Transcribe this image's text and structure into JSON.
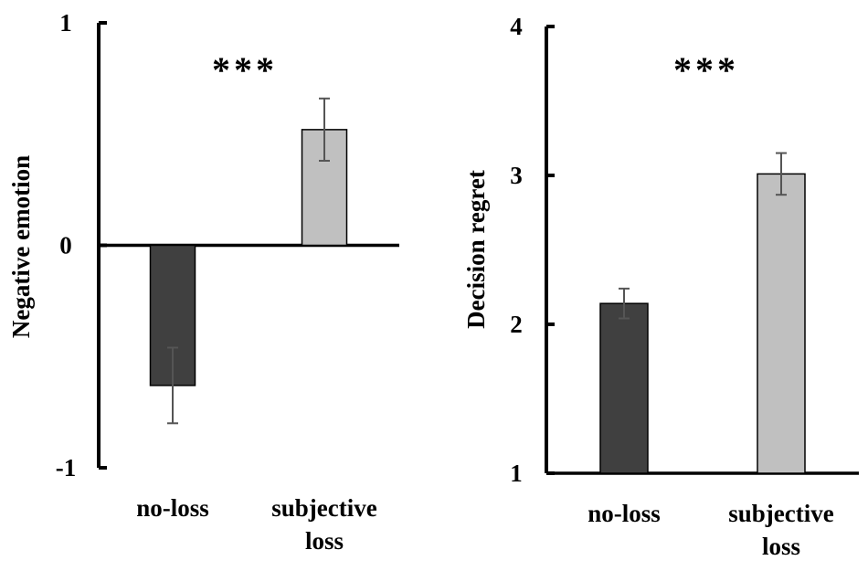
{
  "chart_data": [
    {
      "type": "bar",
      "categories": [
        [
          "no-loss"
        ],
        [
          "subjective",
          "loss"
        ]
      ],
      "values": [
        -0.63,
        0.52
      ],
      "errors": [
        0.17,
        0.14
      ],
      "colors": [
        "#404040",
        "#c0c0c0"
      ],
      "ylabel": "Negative emotion",
      "ylim": [
        -1,
        1
      ],
      "yticks": [
        -1,
        0,
        1
      ],
      "ytick_labels": [
        "-1",
        "0",
        "1"
      ],
      "significance": "***"
    },
    {
      "type": "bar",
      "categories": [
        [
          "no-loss"
        ],
        [
          "subjective",
          "loss"
        ]
      ],
      "values": [
        2.14,
        3.01
      ],
      "errors": [
        0.1,
        0.14
      ],
      "colors": [
        "#404040",
        "#c0c0c0"
      ],
      "ylabel": "Decision regret",
      "ylim": [
        1,
        4
      ],
      "yticks": [
        1,
        2,
        3,
        4
      ],
      "ytick_labels": [
        "1",
        "2",
        "3",
        "4"
      ],
      "significance": "***"
    }
  ]
}
